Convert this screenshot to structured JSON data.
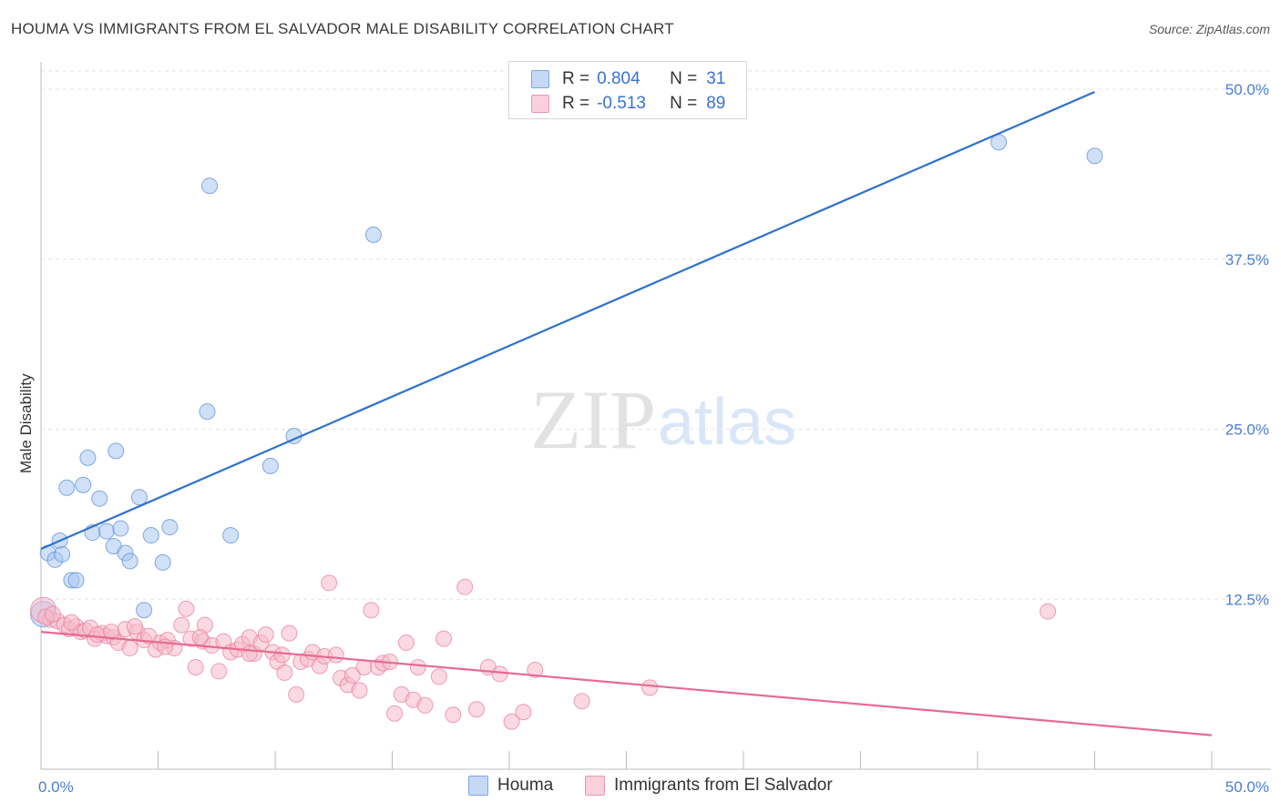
{
  "header": {
    "title": "HOUMA VS IMMIGRANTS FROM EL SALVADOR MALE DISABILITY CORRELATION CHART",
    "source": "Source: ZipAtlas.com"
  },
  "watermark": {
    "zip": "ZIP",
    "atlas": "atlas"
  },
  "legend": {
    "rows": [
      {
        "r_label": "R =",
        "r_value": "0.804",
        "n_label": "N =",
        "n_value": "31",
        "color": "#a9c6f0"
      },
      {
        "r_label": "R =",
        "r_value": "-0.513",
        "n_label": "N =",
        "n_value": "89",
        "color": "#f5b9cb"
      }
    ]
  },
  "chart_data": {
    "type": "scatter",
    "title": "HOUMA VS IMMIGRANTS FROM EL SALVADOR MALE DISABILITY CORRELATION CHART",
    "xlabel": "",
    "ylabel": "Male Disability",
    "xlim": [
      0,
      50
    ],
    "ylim": [
      0,
      50
    ],
    "x_tick_labels": [
      "0.0%",
      "50.0%"
    ],
    "y_ticks": [
      12.5,
      25.0,
      37.5,
      50.0
    ],
    "y_tick_labels": [
      "12.5%",
      "25.0%",
      "37.5%",
      "50.0%"
    ],
    "grid": true,
    "legend_position": "bottom-center",
    "series": [
      {
        "name": "Houma",
        "color": "#5b8fd9",
        "fill": "#a9c6f0",
        "trend": {
          "x": [
            0,
            45
          ],
          "y": [
            16.2,
            49.8
          ],
          "color": "#2f72cc"
        },
        "points": [
          [
            0.3,
            15.9
          ],
          [
            0.6,
            15.4
          ],
          [
            0.8,
            16.8
          ],
          [
            0.9,
            15.8
          ],
          [
            1.3,
            13.9
          ],
          [
            1.5,
            13.9
          ],
          [
            1.1,
            20.7
          ],
          [
            1.8,
            20.9
          ],
          [
            2.0,
            22.9
          ],
          [
            2.5,
            19.9
          ],
          [
            2.2,
            17.4
          ],
          [
            2.8,
            17.5
          ],
          [
            3.1,
            16.4
          ],
          [
            3.2,
            23.4
          ],
          [
            3.4,
            17.7
          ],
          [
            3.6,
            15.9
          ],
          [
            3.8,
            15.3
          ],
          [
            4.2,
            20.0
          ],
          [
            4.4,
            11.7
          ],
          [
            4.7,
            17.2
          ],
          [
            5.2,
            15.2
          ],
          [
            5.5,
            17.8
          ],
          [
            7.1,
            26.3
          ],
          [
            7.2,
            42.9
          ],
          [
            8.1,
            17.2
          ],
          [
            9.8,
            22.3
          ],
          [
            10.8,
            24.5
          ],
          [
            14.2,
            39.3
          ],
          [
            40.9,
            46.1
          ],
          [
            45.0,
            45.1
          ],
          [
            0.1,
            11.4
          ]
        ]
      },
      {
        "name": "Immigrants from El Salvador",
        "color": "#e97fa0",
        "fill": "#f5b9cb",
        "trend": {
          "x": [
            0,
            50
          ],
          "y": [
            10.1,
            2.5
          ],
          "color": "#e66a92"
        },
        "points": [
          [
            0.1,
            11.7
          ],
          [
            0.4,
            11.0
          ],
          [
            0.7,
            10.9
          ],
          [
            1.0,
            10.6
          ],
          [
            1.2,
            10.3
          ],
          [
            1.5,
            10.5
          ],
          [
            1.7,
            10.1
          ],
          [
            1.9,
            10.2
          ],
          [
            2.1,
            10.4
          ],
          [
            2.3,
            9.6
          ],
          [
            2.6,
            10.0
          ],
          [
            2.8,
            9.8
          ],
          [
            3.1,
            9.7
          ],
          [
            3.3,
            9.3
          ],
          [
            3.6,
            10.3
          ],
          [
            3.8,
            8.9
          ],
          [
            4.1,
            10.1
          ],
          [
            4.4,
            9.5
          ],
          [
            4.6,
            9.8
          ],
          [
            4.9,
            8.8
          ],
          [
            5.1,
            9.3
          ],
          [
            5.4,
            9.5
          ],
          [
            5.7,
            8.9
          ],
          [
            6.0,
            10.6
          ],
          [
            6.2,
            11.8
          ],
          [
            6.4,
            9.6
          ],
          [
            6.6,
            7.5
          ],
          [
            6.9,
            9.4
          ],
          [
            7.0,
            10.6
          ],
          [
            7.3,
            9.1
          ],
          [
            7.6,
            7.2
          ],
          [
            7.8,
            9.4
          ],
          [
            8.1,
            8.6
          ],
          [
            8.4,
            8.8
          ],
          [
            8.6,
            9.2
          ],
          [
            8.9,
            9.7
          ],
          [
            9.1,
            8.5
          ],
          [
            9.4,
            9.3
          ],
          [
            9.6,
            9.9
          ],
          [
            9.9,
            8.6
          ],
          [
            10.1,
            7.9
          ],
          [
            10.4,
            7.1
          ],
          [
            10.6,
            10.0
          ],
          [
            10.9,
            5.5
          ],
          [
            11.1,
            7.9
          ],
          [
            11.4,
            8.1
          ],
          [
            11.6,
            8.6
          ],
          [
            11.9,
            7.6
          ],
          [
            12.1,
            8.3
          ],
          [
            12.3,
            13.7
          ],
          [
            12.6,
            8.4
          ],
          [
            12.8,
            6.7
          ],
          [
            13.1,
            6.2
          ],
          [
            13.3,
            6.9
          ],
          [
            13.6,
            5.8
          ],
          [
            13.8,
            7.5
          ],
          [
            14.1,
            11.7
          ],
          [
            14.4,
            7.5
          ],
          [
            14.6,
            7.8
          ],
          [
            14.9,
            7.9
          ],
          [
            15.1,
            4.1
          ],
          [
            15.4,
            5.5
          ],
          [
            15.6,
            9.3
          ],
          [
            15.9,
            5.1
          ],
          [
            16.1,
            7.5
          ],
          [
            16.4,
            4.7
          ],
          [
            17.0,
            6.8
          ],
          [
            17.2,
            9.6
          ],
          [
            17.6,
            4.0
          ],
          [
            18.1,
            13.4
          ],
          [
            18.6,
            4.4
          ],
          [
            19.1,
            7.5
          ],
          [
            19.6,
            7.0
          ],
          [
            20.1,
            3.5
          ],
          [
            20.6,
            4.2
          ],
          [
            21.1,
            7.3
          ],
          [
            23.1,
            5.0
          ],
          [
            26.0,
            6.0
          ],
          [
            43.0,
            11.6
          ],
          [
            0.2,
            11.2
          ],
          [
            0.5,
            11.4
          ],
          [
            1.3,
            10.8
          ],
          [
            2.4,
            9.9
          ],
          [
            3.0,
            10.1
          ],
          [
            4.0,
            10.5
          ],
          [
            5.3,
            9.0
          ],
          [
            6.8,
            9.7
          ],
          [
            8.9,
            8.5
          ],
          [
            10.3,
            8.4
          ]
        ]
      }
    ]
  },
  "bottom_legend": {
    "items": [
      {
        "label": "Houma",
        "color": "#a9c6f0"
      },
      {
        "label": "Immigrants from El Salvador",
        "color": "#f5b9cb"
      }
    ]
  }
}
